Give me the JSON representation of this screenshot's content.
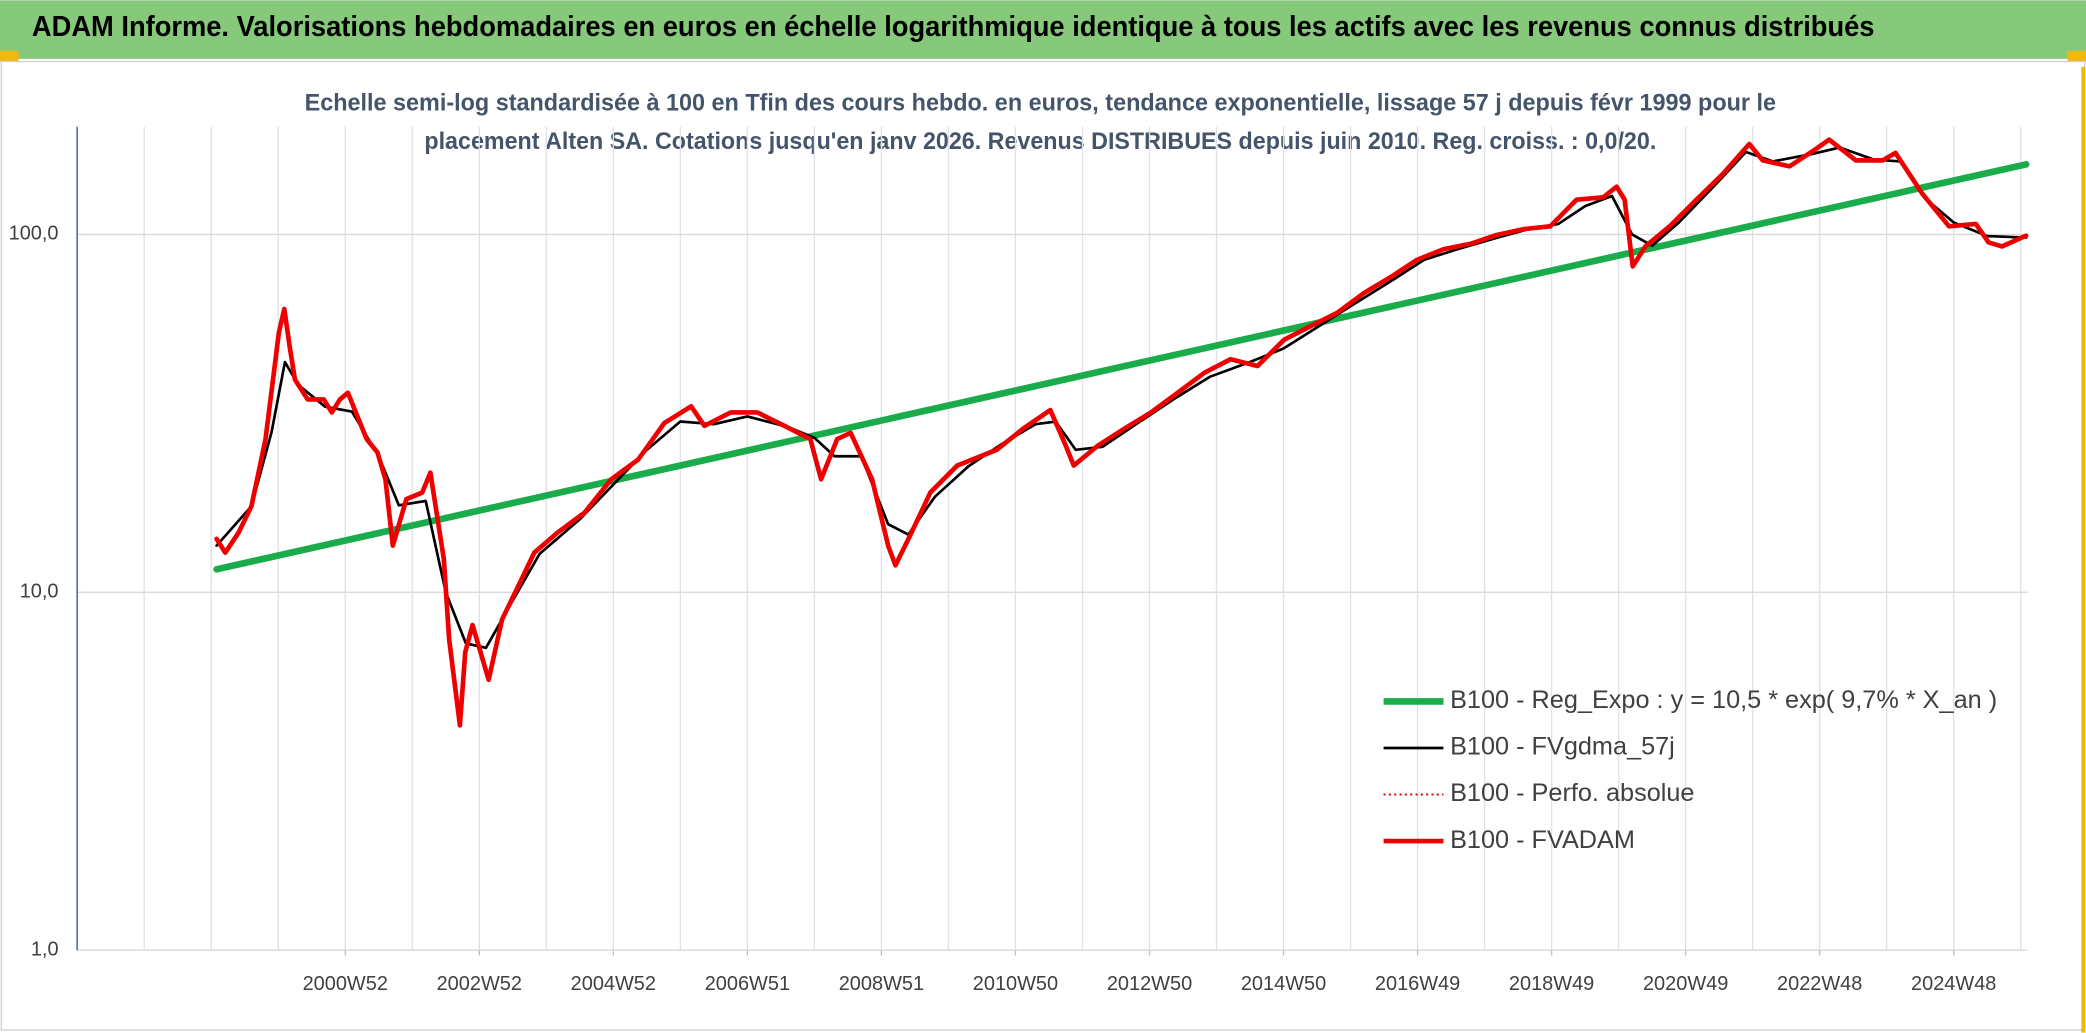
{
  "chart_data": {
    "type": "line",
    "title": "ADAM Informe. Valorisations hebdomadaires en euros en échelle logarithmique identique à tous les actifs avec les revenus connus distribués",
    "subtitle": [
      "Echelle semi-log standardisée à 100 en Tfin des cours hebdo. en euros, tendance exponentielle, lissage 57 j depuis févr 1999 pour le",
      "placement Alten SA. Cotations jusqu'en janv 2026. Revenus DISTRIBUES depuis juin 2010. Reg. croiss. : 0,0/20."
    ],
    "log_scale": true,
    "grid": true,
    "legend": "right",
    "xlim": [
      1997,
      2026.1
    ],
    "xticks": [
      {
        "value": 2001,
        "label": "2000W52"
      },
      {
        "value": 2003,
        "label": "2002W52"
      },
      {
        "value": 2005,
        "label": "2004W52"
      },
      {
        "value": 2007,
        "label": "2006W51"
      },
      {
        "value": 2009,
        "label": "2008W51"
      },
      {
        "value": 2011,
        "label": "2010W50"
      },
      {
        "value": 2013,
        "label": "2012W50"
      },
      {
        "value": 2015,
        "label": "2014W50"
      },
      {
        "value": 2017,
        "label": "2016W49"
      },
      {
        "value": 2019,
        "label": "2018W49"
      },
      {
        "value": 2021,
        "label": "2020W49"
      },
      {
        "value": 2023,
        "label": "2022W48"
      },
      {
        "value": 2025,
        "label": "2024W48"
      }
    ],
    "xgrid": [
      1997,
      1998,
      1999,
      2000,
      2001,
      2002,
      2003,
      2004,
      2005,
      2006,
      2007,
      2008,
      2009,
      2010,
      2011,
      2012,
      2013,
      2014,
      2015,
      2016,
      2017,
      2018,
      2019,
      2020,
      2021,
      2022,
      2023,
      2024,
      2025,
      2026
    ],
    "ylim": [
      1,
      200
    ],
    "yticks": [
      {
        "value": 1,
        "label": "1,0"
      },
      {
        "value": 10,
        "label": "10,0"
      },
      {
        "value": 100,
        "label": "100,0"
      }
    ],
    "series": [
      {
        "name": "B100 - Reg_Expo : y = 10,5 * exp( 9,7% *  X_an )",
        "color": "#1aab4b",
        "style": "solid",
        "width": 5,
        "x": [
          1999.08,
          2026.08
        ],
        "values": [
          11.6,
          157
        ]
      },
      {
        "name": "B100 - FVgdma_57j",
        "color": "#000000",
        "style": "solid",
        "width": 2,
        "x": [
          1999.08,
          1999.6,
          1999.9,
          2000.1,
          2000.3,
          2000.7,
          2001.1,
          2001.5,
          2001.8,
          2002.2,
          2002.5,
          2002.8,
          2003.1,
          2003.5,
          2003.9,
          2004.5,
          2005.0,
          2005.5,
          2006.0,
          2006.5,
          2007.0,
          2007.6,
          2008.0,
          2008.3,
          2008.7,
          2009.1,
          2009.4,
          2009.8,
          2010.3,
          2010.8,
          2011.3,
          2011.6,
          2011.9,
          2012.3,
          2012.8,
          2013.4,
          2013.9,
          2014.5,
          2015.0,
          2015.5,
          2016.0,
          2016.6,
          2017.1,
          2017.6,
          2018.2,
          2018.7,
          2019.1,
          2019.5,
          2019.9,
          2020.2,
          2020.5,
          2020.9,
          2021.4,
          2021.9,
          2022.3,
          2022.9,
          2023.3,
          2023.8,
          2024.2,
          2024.6,
          2025.0,
          2025.5,
          2026.08
        ],
        "values": [
          13.5,
          17.4,
          28,
          44,
          38,
          33,
          32,
          24,
          17.5,
          18,
          10,
          7.2,
          7.0,
          9.5,
          12.8,
          16,
          20,
          25,
          30,
          29.5,
          31,
          29,
          27,
          24,
          24,
          15.5,
          14.5,
          18.5,
          22.5,
          26,
          29.5,
          30,
          25,
          25.5,
          29.5,
          35,
          40,
          44,
          48,
          55,
          63,
          74,
          85,
          91,
          98,
          104,
          107,
          120,
          128,
          100,
          93,
          108,
          135,
          170,
          160,
          168,
          175,
          162,
          160,
          125,
          108,
          99,
          98
        ]
      },
      {
        "name": "B100 - Perfo. absolue",
        "color": "#e00000",
        "style": "dotted",
        "width": 1.5,
        "x": [
          1999.08,
          1999.21,
          1999.41,
          1999.6,
          1999.81,
          1999.91,
          2000.01,
          2000.09,
          2000.17,
          2000.25,
          2000.44,
          2000.68,
          2000.8,
          2000.92,
          2001.04,
          2001.32,
          2001.48,
          2001.6,
          2001.71,
          2001.91,
          2002.15,
          2002.27,
          2002.47,
          2002.55,
          2002.71,
          2002.79,
          2002.9,
          2003.14,
          2003.34,
          2003.58,
          2003.82,
          2004.17,
          2004.57,
          2004.97,
          2005.37,
          2005.76,
          2006.16,
          2006.36,
          2006.75,
          2007.15,
          2007.55,
          2007.94,
          2008.1,
          2008.34,
          2008.54,
          2008.86,
          2009.1,
          2009.21,
          2009.45,
          2009.73,
          2010.13,
          2010.72,
          2011.12,
          2011.52,
          2011.75,
          2011.87,
          2012.23,
          2012.63,
          2013.02,
          2013.42,
          2013.82,
          2014.21,
          2014.61,
          2015.01,
          2015.4,
          2015.8,
          2016.2,
          2016.6,
          2016.99,
          2017.39,
          2017.79,
          2018.18,
          2018.58,
          2018.98,
          2019.37,
          2019.77,
          2019.97,
          2020.09,
          2020.21,
          2020.4,
          2020.76,
          2021.16,
          2021.56,
          2021.95,
          2022.15,
          2022.55,
          2022.94,
          2023.14,
          2023.54,
          2023.94,
          2024.13,
          2024.53,
          2024.93,
          2025.33,
          2025.52,
          2025.72,
          2026.08
        ],
        "values": [
          14.1,
          12.9,
          14.7,
          17.4,
          26.8,
          37.7,
          53.1,
          61.9,
          48.7,
          39.3,
          34.6,
          34.6,
          31.8,
          34.6,
          36.1,
          26.8,
          24.6,
          20.7,
          13.5,
          18.2,
          19.0,
          21.6,
          12.4,
          7.4,
          4.25,
          6.8,
          8.1,
          5.7,
          8.4,
          10.4,
          12.9,
          14.7,
          16.7,
          20.7,
          23.5,
          29.7,
          33.1,
          29.2,
          31.8,
          31.8,
          29.2,
          26.8,
          20.7,
          26.8,
          27.9,
          20.7,
          13.5,
          11.9,
          14.7,
          19.0,
          22.6,
          25.0,
          28.7,
          32.3,
          25.7,
          22.6,
          25.7,
          28.7,
          31.8,
          36.1,
          41.1,
          44.8,
          42.9,
          50.8,
          55.4,
          60.4,
          68.6,
          76.0,
          84.9,
          91.0,
          94.2,
          99.6,
          103.5,
          105.3,
          125,
          127,
          136,
          125,
          81.4,
          92.6,
          105.3,
          125,
          148,
          179,
          161,
          155,
          173,
          184,
          161,
          161,
          169,
          130,
          105.3,
          107,
          95,
          92.6,
          99.2
        ]
      },
      {
        "name": "B100 - FVADAM",
        "color": "#ee0000",
        "style": "solid",
        "width": 3.5,
        "x": [
          1999.08,
          1999.21,
          1999.41,
          1999.6,
          1999.81,
          1999.91,
          2000.01,
          2000.09,
          2000.17,
          2000.25,
          2000.44,
          2000.68,
          2000.8,
          2000.92,
          2001.04,
          2001.32,
          2001.48,
          2001.6,
          2001.71,
          2001.91,
          2002.15,
          2002.27,
          2002.47,
          2002.55,
          2002.71,
          2002.79,
          2002.9,
          2003.14,
          2003.34,
          2003.58,
          2003.82,
          2004.17,
          2004.57,
          2004.97,
          2005.37,
          2005.76,
          2006.16,
          2006.36,
          2006.75,
          2007.15,
          2007.55,
          2007.94,
          2008.1,
          2008.34,
          2008.54,
          2008.86,
          2009.1,
          2009.21,
          2009.45,
          2009.73,
          2010.13,
          2010.72,
          2011.12,
          2011.52,
          2011.75,
          2011.87,
          2012.23,
          2012.63,
          2013.02,
          2013.42,
          2013.82,
          2014.21,
          2014.61,
          2015.01,
          2015.4,
          2015.8,
          2016.2,
          2016.6,
          2016.99,
          2017.39,
          2017.79,
          2018.18,
          2018.58,
          2018.98,
          2019.37,
          2019.77,
          2019.97,
          2020.09,
          2020.21,
          2020.4,
          2020.76,
          2021.16,
          2021.56,
          2021.95,
          2022.15,
          2022.55,
          2022.94,
          2023.14,
          2023.54,
          2023.94,
          2024.13,
          2024.53,
          2024.93,
          2025.33,
          2025.52,
          2025.72,
          2026.08
        ],
        "values": [
          14.1,
          12.9,
          14.7,
          17.4,
          26.8,
          37.7,
          53.1,
          61.9,
          48.7,
          39.3,
          34.6,
          34.6,
          31.8,
          34.6,
          36.1,
          26.8,
          24.6,
          20.7,
          13.5,
          18.2,
          19.0,
          21.6,
          12.4,
          7.4,
          4.25,
          6.8,
          8.1,
          5.7,
          8.4,
          10.4,
          12.9,
          14.7,
          16.7,
          20.7,
          23.5,
          29.7,
          33.1,
          29.2,
          31.8,
          31.8,
          29.2,
          26.8,
          20.7,
          26.8,
          27.9,
          20.7,
          13.5,
          11.9,
          14.7,
          19.0,
          22.6,
          25.0,
          28.7,
          32.3,
          25.7,
          22.6,
          25.7,
          28.7,
          31.8,
          36.1,
          41.1,
          44.8,
          42.9,
          50.8,
          55.4,
          60.4,
          68.6,
          76.0,
          84.9,
          91.0,
          94.2,
          99.6,
          103.5,
          105.3,
          125,
          127,
          136,
          125,
          81.4,
          92.6,
          105.3,
          125,
          148,
          179,
          161,
          155,
          173,
          184,
          161,
          161,
          169,
          130,
          105.3,
          107,
          95,
          92.6,
          99.2
        ]
      }
    ]
  }
}
